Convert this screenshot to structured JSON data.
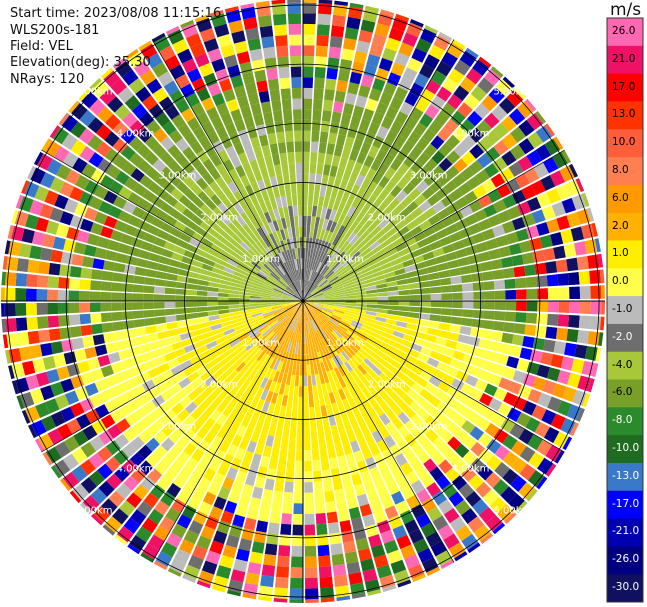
{
  "header": {
    "start_time": "Start time: 2023/08/08 11:15:16",
    "instrument": "WLS200s-181",
    "field": "Field: VEL",
    "elevation": "Elevation(deg): 35.30",
    "nrays": "NRays: 120"
  },
  "chart_data": {
    "type": "heatmap",
    "projection": "polar-ppi",
    "field": "VEL",
    "units_label": "m/s",
    "n_rays": 120,
    "range_rings_km": [
      1,
      2,
      3,
      4,
      5
    ],
    "ring_labels": [
      "1.00km",
      "2.00km",
      "3.00km",
      "4.00km",
      "5.00km"
    ],
    "colorbar": {
      "min": -30.0,
      "max": 30.0,
      "tick_labels": [
        "26.0",
        "21.0",
        "17.0",
        "13.0",
        "10.0",
        "8.0",
        "6.0",
        "2.0",
        "1.0",
        "0.0",
        "-1.0",
        "-2.0",
        "-4.0",
        "-6.0",
        "-8.0",
        "-10.0",
        "-13.0",
        "-17.0",
        "-21.0",
        "-26.0",
        "-30.0"
      ],
      "colors": [
        "#ff69b4",
        "#ee1166",
        "#ff0000",
        "#ff3300",
        "#ff5e3a",
        "#ff7f50",
        "#ff9900",
        "#ffb000",
        "#ffee00",
        "#ffff4a",
        "#bbbbbb",
        "#6e6e6e",
        "#a8c83a",
        "#78a028",
        "#2b8a2b",
        "#1f6b1f",
        "#3a78c9",
        "#0000ff",
        "#0000b0",
        "#000080",
        "#101060"
      ]
    },
    "pattern": {
      "approaching_sector_deg": [
        260,
        100
      ],
      "approaching_value_range": [
        -10,
        -2
      ],
      "receding_sector_deg": [
        100,
        260
      ],
      "receding_value_range": [
        2,
        10
      ],
      "noise_beyond_km": 3.2
    }
  }
}
